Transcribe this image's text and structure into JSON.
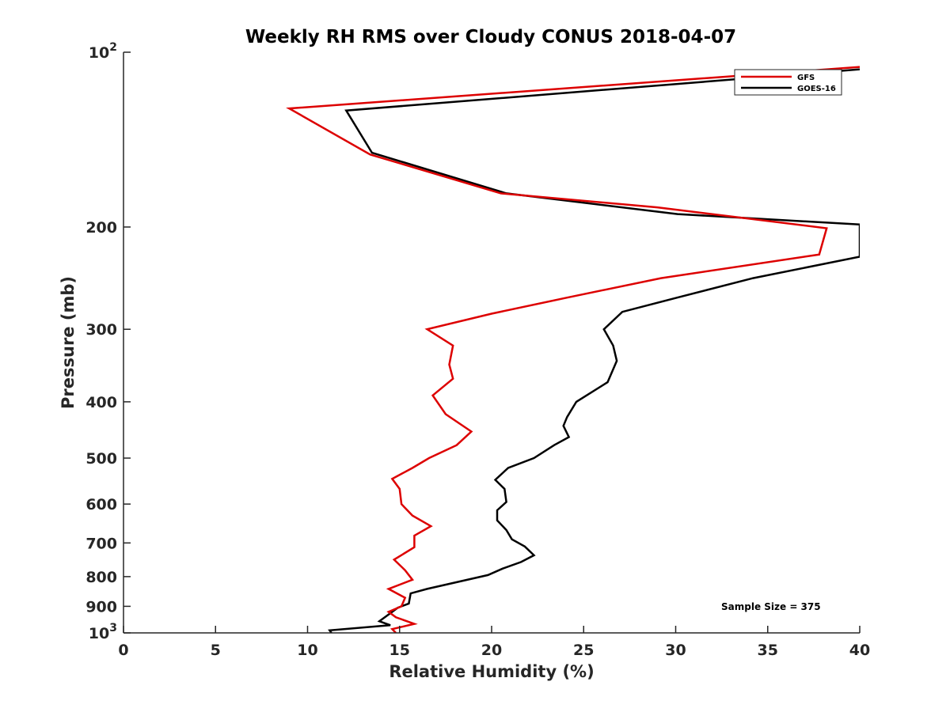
{
  "chart_data": {
    "type": "line",
    "title": "Weekly RH RMS over Cloudy CONUS 2018-04-07",
    "xlabel": "Relative Humidity (%)",
    "ylabel": "Pressure (mb)",
    "xlim": [
      0,
      40
    ],
    "ylim": [
      100,
      1000
    ],
    "y_scale": "log",
    "y_reversed": true,
    "grid": false,
    "legend_position": "top-right",
    "x_ticks": [
      "0",
      "5",
      "10",
      "15",
      "20",
      "25",
      "30",
      "35",
      "40"
    ],
    "y_ticks": [
      {
        "value": 100,
        "base": "10",
        "exp": "2"
      },
      {
        "value": 200,
        "base": "200",
        "exp": ""
      },
      {
        "value": 300,
        "base": "300",
        "exp": ""
      },
      {
        "value": 400,
        "base": "400",
        "exp": ""
      },
      {
        "value": 500,
        "base": "500",
        "exp": ""
      },
      {
        "value": 600,
        "base": "600",
        "exp": ""
      },
      {
        "value": 700,
        "base": "700",
        "exp": ""
      },
      {
        "value": 800,
        "base": "800",
        "exp": ""
      },
      {
        "value": 900,
        "base": "900",
        "exp": ""
      },
      {
        "value": 1000,
        "base": "10",
        "exp": "3"
      }
    ],
    "annotation": "Sample Size = 375",
    "series": [
      {
        "name": "GFS",
        "color": "#dd0000",
        "points": [
          [
            40,
            106
          ],
          [
            9,
            125
          ],
          [
            13.4,
            150
          ],
          [
            20.5,
            175
          ],
          [
            29,
            185
          ],
          [
            38.2,
            201
          ],
          [
            37.8,
            223
          ],
          [
            29.2,
            245
          ],
          [
            24,
            265
          ],
          [
            20,
            282
          ],
          [
            16.5,
            300
          ],
          [
            17.9,
            320
          ],
          [
            17.7,
            345
          ],
          [
            17.9,
            365
          ],
          [
            16.8,
            390
          ],
          [
            17.5,
            420
          ],
          [
            18.9,
            450
          ],
          [
            18.1,
            475
          ],
          [
            16.6,
            500
          ],
          [
            15.7,
            520
          ],
          [
            14.6,
            543
          ],
          [
            15,
            565
          ],
          [
            15.1,
            600
          ],
          [
            15.7,
            628
          ],
          [
            16.7,
            655
          ],
          [
            15.8,
            680
          ],
          [
            15.8,
            712
          ],
          [
            14.7,
            748
          ],
          [
            15.3,
            780
          ],
          [
            15.7,
            810
          ],
          [
            14.4,
            840
          ],
          [
            15.3,
            870
          ],
          [
            15.1,
            900
          ],
          [
            14.4,
            920
          ],
          [
            14.8,
            940
          ],
          [
            15.8,
            965
          ],
          [
            14.6,
            985
          ],
          [
            14.8,
            1000
          ]
        ]
      },
      {
        "name": "GOES-16",
        "color": "#000000",
        "points": [
          [
            40,
            107
          ],
          [
            12.1,
            126
          ],
          [
            13.5,
            149
          ],
          [
            20.8,
            175
          ],
          [
            30.1,
            190
          ],
          [
            40,
            198
          ],
          [
            40,
            225
          ],
          [
            34.2,
            245
          ],
          [
            30,
            265
          ],
          [
            27.1,
            280
          ],
          [
            26.1,
            300
          ],
          [
            26.6,
            320
          ],
          [
            26.8,
            340
          ],
          [
            26.3,
            370
          ],
          [
            24.6,
            400
          ],
          [
            24.1,
            425
          ],
          [
            23.9,
            440
          ],
          [
            24.2,
            460
          ],
          [
            23.4,
            475
          ],
          [
            22.3,
            500
          ],
          [
            20.9,
            520
          ],
          [
            20.2,
            545
          ],
          [
            20.7,
            565
          ],
          [
            20.8,
            595
          ],
          [
            20.3,
            615
          ],
          [
            20.3,
            640
          ],
          [
            20.8,
            665
          ],
          [
            21.1,
            690
          ],
          [
            21.8,
            710
          ],
          [
            22.3,
            735
          ],
          [
            21.6,
            755
          ],
          [
            20.6,
            775
          ],
          [
            19.8,
            795
          ],
          [
            16.5,
            840
          ],
          [
            15.6,
            855
          ],
          [
            15.5,
            890
          ],
          [
            14.9,
            905
          ],
          [
            14.5,
            925
          ],
          [
            13.9,
            955
          ],
          [
            14.5,
            970
          ],
          [
            11.2,
            990
          ],
          [
            11.3,
            1000
          ]
        ]
      }
    ]
  }
}
